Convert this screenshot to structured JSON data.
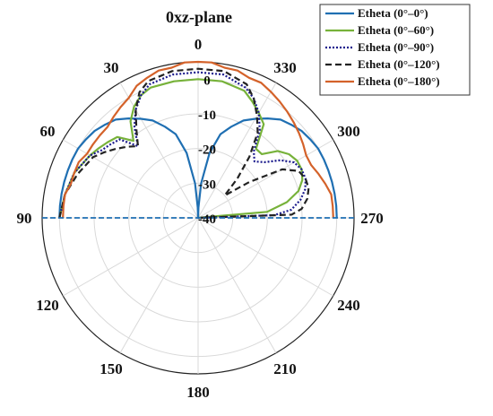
{
  "chart_data": {
    "type": "polar-line",
    "title": "0xz-plane",
    "angle_unit": "deg",
    "angle_direction": "counterclockwise",
    "zero_position": "top",
    "angle_ticks": [
      "0",
      "30",
      "60",
      "90",
      "120",
      "150",
      "180",
      "210",
      "240",
      "270",
      "300",
      "330"
    ],
    "angle_tick_values": [
      0,
      30,
      60,
      90,
      120,
      150,
      180,
      210,
      240,
      270,
      300,
      330
    ],
    "radial_ticks": [
      "0",
      "-10",
      "-20",
      "-30",
      "-40"
    ],
    "radial_tick_values": [
      0,
      -10,
      -20,
      -30,
      -40
    ],
    "rlim": [
      -40,
      5
    ],
    "grid": true,
    "legend_position": "top-right",
    "series": [
      {
        "name": "Etheta (0°–0°)",
        "color": "#1f6fb2",
        "dash": "solid",
        "theta": [
          90,
          85,
          80,
          75,
          70,
          65,
          60,
          55,
          50,
          45,
          40,
          35,
          30,
          25,
          20,
          15,
          10,
          5,
          2,
          0,
          -2,
          -5,
          -10,
          -15,
          -20,
          -25,
          -30,
          -35,
          -40,
          -45,
          -50,
          -55,
          -60,
          -65,
          -70,
          -75,
          -80,
          -85,
          -90
        ],
        "r": [
          0,
          0,
          0,
          0,
          0,
          0,
          0,
          -0.5,
          -1,
          -2,
          -3,
          -5,
          -7,
          -9,
          -12,
          -15,
          -21,
          -30,
          -37,
          -40,
          -37,
          -30,
          -21,
          -15,
          -12,
          -9,
          -7,
          -5,
          -3,
          -2,
          -1,
          -0.5,
          0,
          0,
          0,
          0,
          0,
          0,
          0
        ]
      },
      {
        "name": "Etheta (0°–60°)",
        "color": "#77b23a",
        "dash": "solid",
        "theta": [
          90,
          80,
          70,
          60,
          55,
          50,
          45,
          40,
          35,
          30,
          25,
          20,
          10,
          0,
          -10,
          -20,
          -25,
          -30,
          -35,
          -40,
          -45,
          -50,
          -55,
          -60,
          -65,
          -70,
          -75,
          -80,
          -85,
          -90
        ],
        "r": [
          0,
          -1,
          -2,
          -4,
          -5,
          -6,
          -7,
          -11,
          -6,
          -3,
          -1,
          0,
          0,
          0,
          0,
          -1,
          -3,
          -5,
          -7,
          -14,
          -14,
          -10,
          -8,
          -7,
          -7,
          -8,
          -10,
          -14,
          -20,
          -40
        ]
      },
      {
        "name": "Etheta (0°–90°)",
        "color": "#1a1a8c",
        "dash": "dotted",
        "theta": [
          90,
          80,
          70,
          60,
          55,
          50,
          45,
          40,
          35,
          30,
          25,
          20,
          10,
          0,
          -10,
          -20,
          -25,
          -30,
          -35,
          -40,
          -45,
          -50,
          -55,
          -60,
          -65,
          -70,
          -75,
          -80,
          -85,
          -88,
          -90
        ],
        "r": [
          0,
          -1,
          -2,
          -4,
          -6,
          -7,
          -8,
          -13,
          -8,
          -4,
          -1,
          1,
          2,
          2,
          2,
          0,
          -2,
          -5,
          -9,
          -15,
          -17,
          -15,
          -11,
          -8,
          -7,
          -7,
          -8,
          -10,
          -13,
          -18,
          -40
        ]
      },
      {
        "name": "Etheta (0°–120°)",
        "color": "#222222",
        "dash": "dashed",
        "theta": [
          90,
          80,
          70,
          60,
          55,
          50,
          45,
          40,
          35,
          30,
          25,
          20,
          10,
          0,
          -10,
          -20,
          -25,
          -30,
          -35,
          -40,
          -45,
          -50,
          -55,
          -60,
          -65,
          -70,
          -75,
          -80,
          -85,
          -88,
          -90
        ],
        "r": [
          0,
          -1,
          -3,
          -5,
          -7,
          -9,
          -11,
          -13,
          -9,
          -4,
          0,
          2,
          3,
          3,
          3,
          1,
          -2,
          -6,
          -10,
          -17,
          -24,
          -30,
          -22,
          -12,
          -8,
          -7,
          -7,
          -8,
          -10,
          -13,
          -40
        ]
      },
      {
        "name": "Etheta (0°–180°)",
        "color": "#d4622a",
        "dash": "solid",
        "theta": [
          90,
          85,
          80,
          75,
          70,
          65,
          60,
          55,
          50,
          45,
          40,
          35,
          30,
          25,
          20,
          15,
          10,
          5,
          0,
          -5,
          -10,
          -15,
          -20,
          -25,
          -30,
          -35,
          -40,
          -45,
          -50,
          -55,
          -60,
          -65,
          -70,
          -75,
          -80,
          -85,
          -90
        ],
        "r": [
          -1,
          -1,
          -1,
          -2,
          -2,
          -2,
          -3,
          -3,
          -3,
          -3,
          -2,
          -1,
          0,
          2,
          3,
          4,
          4,
          5,
          5,
          5,
          4,
          4,
          3,
          3,
          2,
          1,
          0,
          -1,
          -2,
          -3,
          -4,
          -4,
          -3,
          -2,
          -1,
          -1,
          -1
        ]
      }
    ]
  }
}
